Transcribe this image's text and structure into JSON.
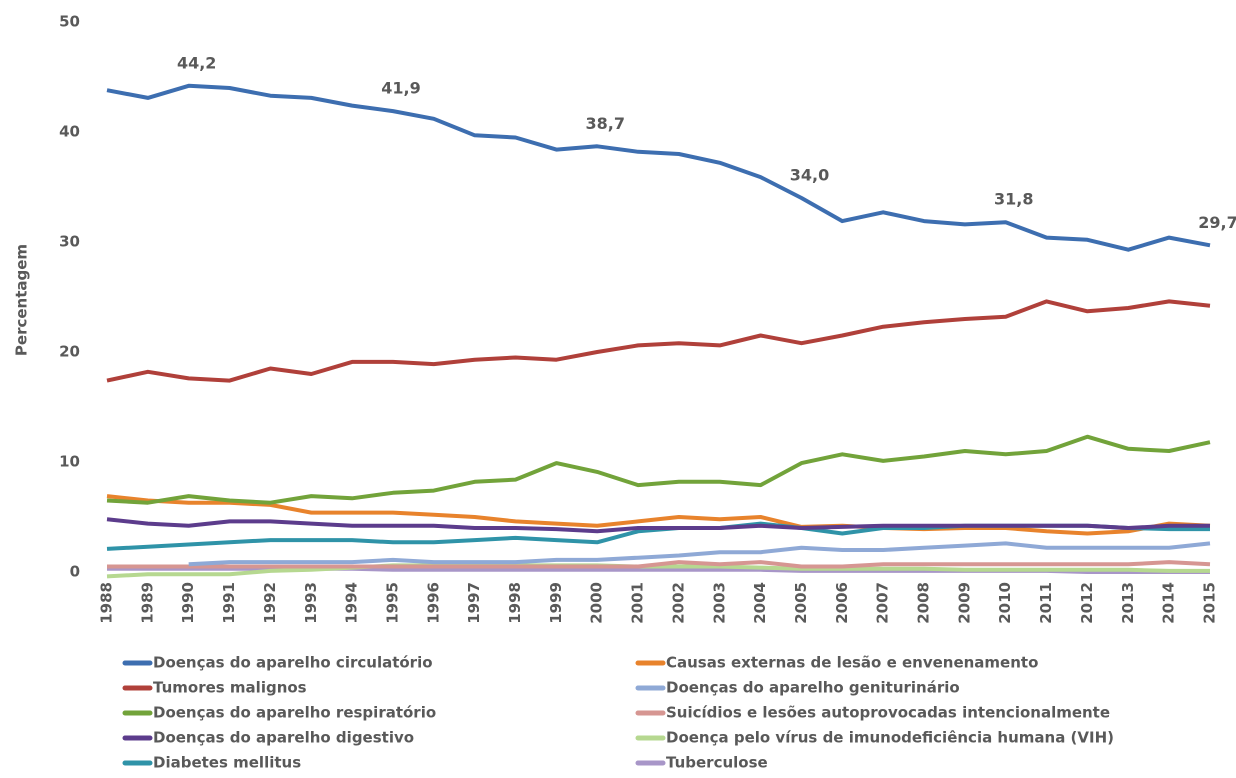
{
  "chart_data": {
    "type": "line",
    "y_label": "Percentagem",
    "categories": [
      "1988",
      "1989",
      "1990",
      "1991",
      "1992",
      "1993",
      "1994",
      "1995",
      "1996",
      "1997",
      "1998",
      "1999",
      "2000",
      "2001",
      "2002",
      "2003",
      "2004",
      "2005",
      "2006",
      "2007",
      "2008",
      "2009",
      "2010",
      "2011",
      "2012",
      "2013",
      "2014",
      "2015"
    ],
    "ylim": [
      0,
      50
    ],
    "yticks": [
      0,
      10,
      20,
      30,
      40,
      50
    ],
    "grid": false,
    "series": [
      {
        "name": "Doenças do aparelho circulatório",
        "color": "#3d6eb0",
        "values": [
          43.8,
          43.1,
          44.2,
          44.0,
          43.3,
          43.1,
          42.4,
          41.9,
          41.2,
          39.7,
          39.5,
          38.4,
          38.7,
          38.2,
          38.0,
          37.2,
          35.9,
          34.0,
          31.9,
          32.7,
          31.9,
          31.6,
          31.8,
          30.4,
          30.2,
          29.3,
          30.4,
          29.7
        ],
        "value_labels": [
          null,
          null,
          "44,2",
          null,
          null,
          null,
          null,
          "41,9",
          null,
          null,
          null,
          null,
          "38,7",
          null,
          null,
          null,
          null,
          "34,0",
          null,
          null,
          null,
          null,
          "31,8",
          null,
          null,
          null,
          null,
          "29,7"
        ]
      },
      {
        "name": "Tumores malignos",
        "color": "#b0403a",
        "values": [
          17.4,
          18.2,
          17.6,
          17.4,
          18.5,
          18.0,
          19.1,
          19.1,
          18.9,
          19.3,
          19.5,
          19.3,
          20.0,
          20.6,
          20.8,
          20.6,
          21.5,
          20.8,
          21.5,
          22.3,
          22.7,
          23.0,
          23.2,
          24.6,
          23.7,
          24.0,
          24.6,
          24.2
        ]
      },
      {
        "name": "Doenças do aparelho respiratório",
        "color": "#72a33a",
        "values": [
          6.5,
          6.3,
          6.9,
          6.5,
          6.3,
          6.9,
          6.7,
          7.2,
          7.4,
          8.2,
          8.4,
          9.9,
          9.1,
          7.9,
          8.2,
          8.2,
          7.9,
          9.9,
          10.7,
          10.1,
          10.5,
          11.0,
          10.7,
          11.0,
          12.3,
          11.2,
          11.0,
          11.8
        ]
      },
      {
        "name": "Doenças do aparelho digestivo",
        "color": "#5c3c8c",
        "values": [
          4.8,
          4.4,
          4.2,
          4.6,
          4.6,
          4.4,
          4.2,
          4.2,
          4.2,
          4.0,
          4.0,
          3.9,
          3.7,
          4.0,
          4.0,
          4.0,
          4.2,
          4.0,
          4.1,
          4.2,
          4.2,
          4.2,
          4.2,
          4.2,
          4.2,
          4.0,
          4.2,
          4.2
        ]
      },
      {
        "name": "Diabetes mellitus",
        "color": "#2f93a8",
        "values": [
          2.1,
          2.3,
          2.5,
          2.7,
          2.9,
          2.9,
          2.9,
          2.7,
          2.7,
          2.9,
          3.1,
          2.9,
          2.7,
          3.7,
          4.0,
          4.0,
          4.4,
          4.0,
          3.5,
          4.0,
          4.0,
          4.2,
          4.2,
          4.2,
          4.2,
          4.0,
          3.9,
          3.9
        ]
      },
      {
        "name": "Causas externas de lesão e envenenamento",
        "color": "#e8832c",
        "values": [
          6.9,
          6.5,
          6.3,
          6.3,
          6.1,
          5.4,
          5.4,
          5.4,
          5.2,
          5.0,
          4.6,
          4.4,
          4.2,
          4.6,
          5.0,
          4.8,
          5.0,
          4.1,
          4.2,
          4.0,
          3.9,
          4.0,
          4.0,
          3.7,
          3.5,
          3.7,
          4.4,
          4.2
        ]
      },
      {
        "name": "Doenças do aparelho geniturinário",
        "color": "#8fa9d6",
        "values": [
          null,
          null,
          0.7,
          0.9,
          0.9,
          0.9,
          0.9,
          1.1,
          0.9,
          0.9,
          0.9,
          1.1,
          1.1,
          1.3,
          1.5,
          1.8,
          1.8,
          2.2,
          2.0,
          2.0,
          2.2,
          2.4,
          2.6,
          2.2,
          2.2,
          2.2,
          2.2,
          2.6
        ]
      },
      {
        "name": "Suicídios e lesões autoprovocadas intencionalmente",
        "color": "#d69692",
        "values": [
          0.5,
          0.5,
          0.5,
          0.5,
          0.5,
          0.5,
          0.5,
          0.5,
          0.5,
          0.5,
          0.5,
          0.5,
          0.5,
          0.5,
          0.9,
          0.7,
          0.9,
          0.5,
          0.5,
          0.7,
          0.7,
          0.7,
          0.7,
          0.7,
          0.7,
          0.7,
          0.9,
          0.7
        ]
      },
      {
        "name": "Doença pelo vírus de imunodeficiência humana (VIH)",
        "color": "#b6d890",
        "values": [
          -0.4,
          -0.2,
          -0.2,
          -0.2,
          0.1,
          0.2,
          0.4,
          0.6,
          0.6,
          0.6,
          0.6,
          0.6,
          0.6,
          0.5,
          0.5,
          0.5,
          0.4,
          0.3,
          0.3,
          0.3,
          0.3,
          0.2,
          0.2,
          0.2,
          0.2,
          0.2,
          0.1,
          0.1
        ]
      },
      {
        "name": "Tuberculose",
        "color": "#a896c8",
        "values": [
          0.3,
          0.3,
          0.3,
          0.3,
          0.3,
          0.3,
          0.3,
          0.2,
          0.2,
          0.2,
          0.2,
          0.2,
          0.2,
          0.2,
          0.2,
          0.2,
          0.2,
          0.1,
          0.1,
          0.1,
          0.1,
          0.1,
          0.1,
          0.1,
          0.0,
          0.0,
          0.0,
          0.0
        ]
      }
    ]
  }
}
